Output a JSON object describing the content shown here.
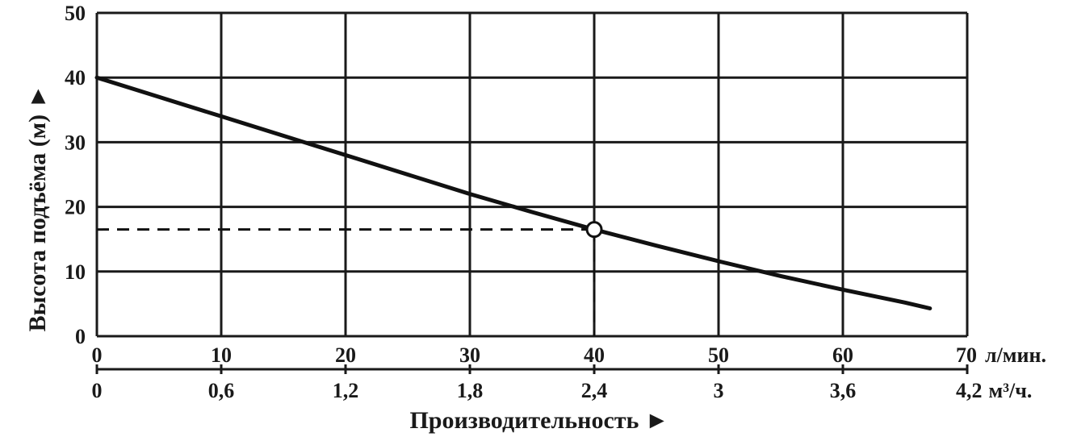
{
  "chart_data": {
    "type": "line",
    "ylabel": "Высота подъёма (м) ►",
    "xlabel": "Производительность ►",
    "y_ticks": [
      "0",
      "10",
      "20",
      "30",
      "40",
      "50"
    ],
    "x_ticks_primary": [
      "0",
      "10",
      "20",
      "30",
      "40",
      "50",
      "60",
      "70"
    ],
    "x_unit_primary": "л/мин.",
    "x_ticks_secondary": [
      "0",
      "0,6",
      "1,2",
      "1,8",
      "2,4",
      "3",
      "3,6",
      "4,2"
    ],
    "x_unit_secondary": "м³/ч.",
    "xlim": [
      0,
      70
    ],
    "ylim": [
      0,
      50
    ],
    "grid": true,
    "series": [
      {
        "x": [
          0,
          5,
          10,
          15,
          20,
          25,
          30,
          35,
          40,
          45,
          50,
          55,
          60,
          65,
          67
        ],
        "y": [
          40,
          37,
          34,
          31,
          28,
          25,
          22,
          19.2,
          16.5,
          14,
          11.6,
          9.3,
          7.2,
          5.2,
          4.3
        ]
      }
    ],
    "marked_point": {
      "x": 40,
      "y": 16.5
    }
  },
  "colors": {
    "line": "#111111",
    "grid": "#1a1a1a",
    "text": "#1a1a1a",
    "background": "#ffffff"
  }
}
